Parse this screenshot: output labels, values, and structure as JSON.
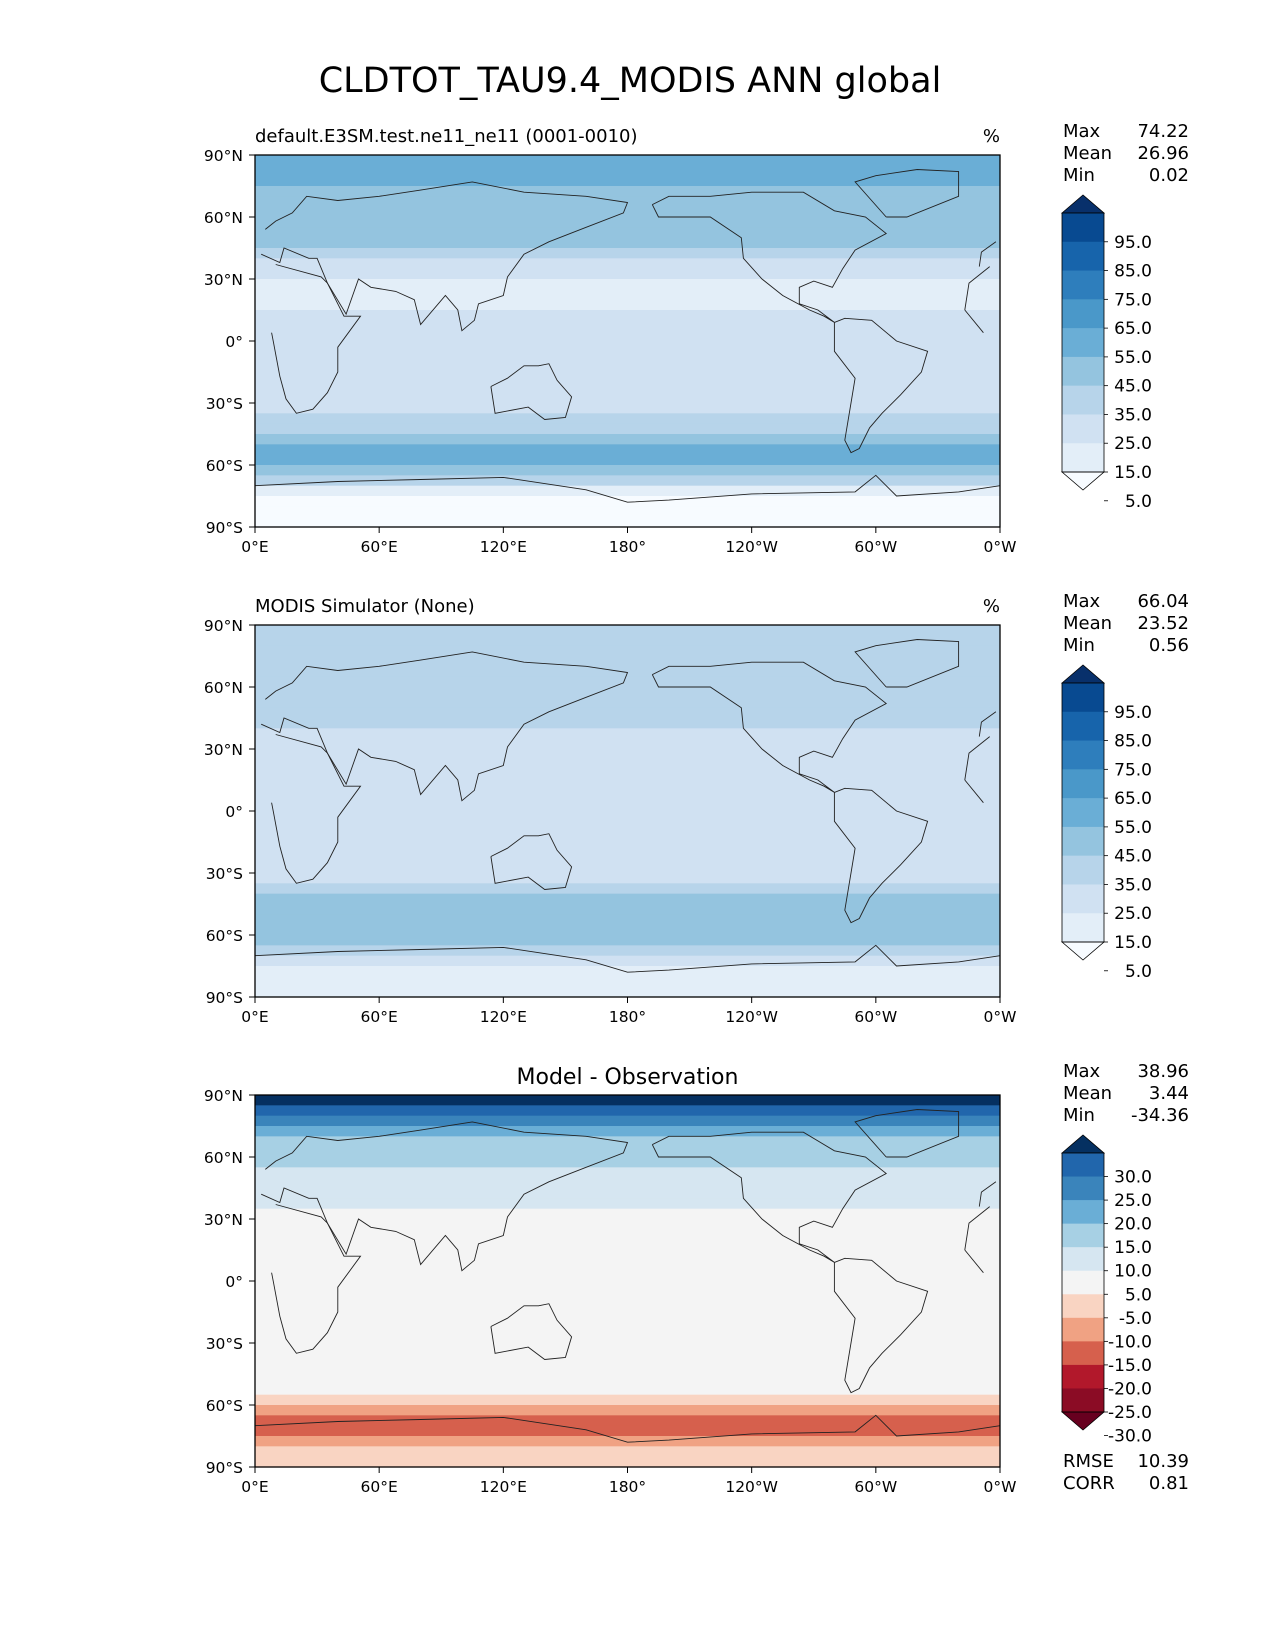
{
  "title": "CLDTOT_TAU9.4_MODIS ANN global",
  "axes": {
    "lat_ticks": [
      "90°N",
      "60°N",
      "30°N",
      "0°",
      "30°S",
      "60°S",
      "90°S"
    ],
    "lon_ticks": [
      "0°E",
      "60°E",
      "120°E",
      "180°",
      "120°W",
      "60°W",
      "0°W"
    ]
  },
  "chart_data": [
    {
      "type": "heatmap",
      "name": "test",
      "title": "default.E3SM.test.ne11_ne11 (0001-0010)",
      "units": "%",
      "stats": {
        "max_label": "Max",
        "max": "74.22",
        "mean_label": "Mean",
        "mean": "26.96",
        "min_label": "Min",
        "min": "0.02"
      },
      "xlim": [
        0,
        360
      ],
      "ylim": [
        -90,
        90
      ],
      "colorbar": {
        "levels": [
          "5.0",
          "15.0",
          "25.0",
          "35.0",
          "45.0",
          "55.0",
          "65.0",
          "75.0",
          "85.0",
          "95.0"
        ],
        "colors": [
          "#f7fbff",
          "#e3eef8",
          "#d0e1f2",
          "#b7d4ea",
          "#94c4df",
          "#6aaed6",
          "#4a98c9",
          "#2e7ebc",
          "#1764ab",
          "#084a91",
          "#08306b"
        ]
      },
      "zonal_profile": {
        "lat": [
          90,
          75,
          60,
          45,
          30,
          15,
          0,
          -15,
          -30,
          -45,
          -55,
          -65,
          -75,
          -90
        ],
        "value": [
          50,
          45,
          40,
          35,
          12,
          15,
          20,
          22,
          18,
          38,
          50,
          40,
          5,
          0
        ]
      }
    },
    {
      "type": "heatmap",
      "name": "reference",
      "title": "MODIS Simulator (None)",
      "units": "%",
      "stats": {
        "max_label": "Max",
        "max": "66.04",
        "mean_label": "Mean",
        "mean": "23.52",
        "min_label": "Min",
        "min": "0.56"
      },
      "xlim": [
        0,
        360
      ],
      "ylim": [
        -90,
        90
      ],
      "colorbar": {
        "levels": [
          "5.0",
          "15.0",
          "25.0",
          "35.0",
          "45.0",
          "55.0",
          "65.0",
          "75.0",
          "85.0",
          "95.0"
        ],
        "colors": [
          "#f7fbff",
          "#e3eef8",
          "#d0e1f2",
          "#b7d4ea",
          "#94c4df",
          "#6aaed6",
          "#4a98c9",
          "#2e7ebc",
          "#1764ab",
          "#084a91",
          "#08306b"
        ]
      },
      "zonal_profile": {
        "lat": [
          90,
          75,
          60,
          45,
          30,
          15,
          0,
          -15,
          -30,
          -45,
          -55,
          -65,
          -75,
          -90
        ],
        "value": [
          25,
          32,
          35,
          32,
          15,
          18,
          22,
          20,
          18,
          40,
          45,
          40,
          15,
          10
        ]
      }
    },
    {
      "type": "heatmap",
      "name": "difference",
      "title": "Model - Observation",
      "stats": {
        "max_label": "Max",
        "max": "38.96",
        "mean_label": "Mean",
        "mean": "3.44",
        "min_label": "Min",
        "min": "-34.36"
      },
      "metrics": {
        "rmse_label": "RMSE",
        "rmse": "10.39",
        "corr_label": "CORR",
        "corr": "0.81"
      },
      "xlim": [
        0,
        360
      ],
      "ylim": [
        -90,
        90
      ],
      "colorbar": {
        "levels": [
          "30.0",
          "25.0",
          "20.0",
          "15.0",
          "10.0",
          "5.0",
          "-5.0",
          "-10.0",
          "-15.0",
          "-20.0",
          "-25.0",
          "-30.0"
        ],
        "colors": [
          "#053061",
          "#2166ac",
          "#3a84bb",
          "#6aaed6",
          "#a7d0e4",
          "#d6e6f1",
          "#f4f4f4",
          "#f9d4c2",
          "#f0a283",
          "#d6604d",
          "#b2182b",
          "#8b0c25",
          "#67001f"
        ]
      },
      "zonal_profile": {
        "lat": [
          90,
          80,
          70,
          60,
          50,
          40,
          30,
          20,
          10,
          0,
          -10,
          -20,
          -30,
          -40,
          -50,
          -60,
          -65,
          -75,
          -90
        ],
        "value": [
          38,
          25,
          15,
          12,
          8,
          6,
          3,
          2,
          3,
          1,
          0,
          -2,
          0,
          3,
          0,
          -8,
          -20,
          -15,
          -5
        ]
      }
    }
  ]
}
